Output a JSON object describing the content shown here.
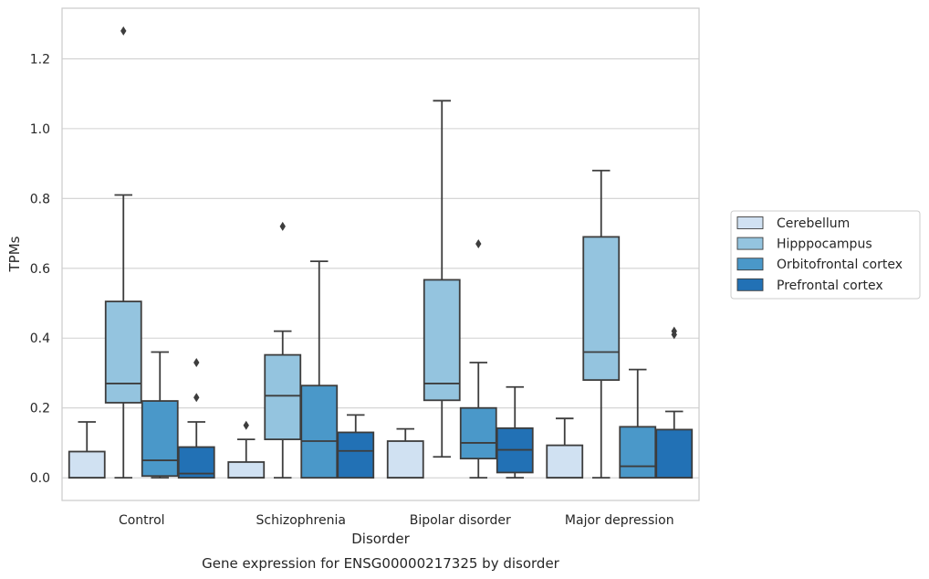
{
  "chart_data": {
    "type": "box",
    "title": "",
    "caption": "Gene expression for ENSG00000217325 by disorder",
    "xlabel": "Disorder",
    "ylabel": "TPMs",
    "ylim": [
      -0.065,
      1.345
    ],
    "yticks": [
      0.0,
      0.2,
      0.4,
      0.6,
      0.8,
      1.0,
      1.2
    ],
    "ytick_labels": [
      "0.0",
      "0.2",
      "0.4",
      "0.6",
      "0.8",
      "1.0",
      "1.2"
    ],
    "grid": "horizontal",
    "legend_position": "right",
    "categories": [
      "Control",
      "Schizophrenia",
      "Bipolar disorder",
      "Major depression"
    ],
    "series": [
      {
        "name": "Cerebellum",
        "color": "#d0e1f2",
        "boxes": [
          {
            "whislo": 0.0,
            "q1": 0.0,
            "med": 0.0,
            "q3": 0.075,
            "whishi": 0.16,
            "fliers": []
          },
          {
            "whislo": 0.0,
            "q1": 0.0,
            "med": 0.0,
            "q3": 0.045,
            "whishi": 0.11,
            "fliers": [
              0.15
            ]
          },
          {
            "whislo": 0.0,
            "q1": 0.0,
            "med": 0.0,
            "q3": 0.105,
            "whishi": 0.14,
            "fliers": []
          },
          {
            "whislo": 0.0,
            "q1": 0.0,
            "med": 0.0,
            "q3": 0.093,
            "whishi": 0.17,
            "fliers": []
          }
        ]
      },
      {
        "name": "Hipppocampus",
        "color": "#94c4df",
        "boxes": [
          {
            "whislo": 0.0,
            "q1": 0.215,
            "med": 0.27,
            "q3": 0.505,
            "whishi": 0.81,
            "fliers": [
              1.28
            ]
          },
          {
            "whislo": 0.0,
            "q1": 0.11,
            "med": 0.235,
            "q3": 0.352,
            "whishi": 0.42,
            "fliers": [
              0.72
            ]
          },
          {
            "whislo": 0.06,
            "q1": 0.222,
            "med": 0.27,
            "q3": 0.567,
            "whishi": 1.08,
            "fliers": []
          },
          {
            "whislo": 0.0,
            "q1": 0.28,
            "med": 0.36,
            "q3": 0.69,
            "whishi": 0.88,
            "fliers": []
          }
        ]
      },
      {
        "name": "Orbitofrontal cortex",
        "color": "#4a98c9",
        "boxes": [
          {
            "whislo": 0.0,
            "q1": 0.005,
            "med": 0.05,
            "q3": 0.22,
            "whishi": 0.36,
            "fliers": []
          },
          {
            "whislo": 0.0,
            "q1": 0.0,
            "med": 0.105,
            "q3": 0.264,
            "whishi": 0.62,
            "fliers": []
          },
          {
            "whislo": 0.0,
            "q1": 0.055,
            "med": 0.1,
            "q3": 0.2,
            "whishi": 0.33,
            "fliers": [
              0.67
            ]
          },
          {
            "whislo": 0.0,
            "q1": 0.0,
            "med": 0.033,
            "q3": 0.146,
            "whishi": 0.31,
            "fliers": []
          }
        ]
      },
      {
        "name": "Prefrontal cortex",
        "color": "#2271b5",
        "boxes": [
          {
            "whislo": 0.0,
            "q1": 0.0,
            "med": 0.012,
            "q3": 0.088,
            "whishi": 0.16,
            "fliers": [
              0.23,
              0.33
            ]
          },
          {
            "whislo": 0.0,
            "q1": 0.0,
            "med": 0.077,
            "q3": 0.13,
            "whishi": 0.18,
            "fliers": []
          },
          {
            "whislo": 0.0,
            "q1": 0.015,
            "med": 0.08,
            "q3": 0.142,
            "whishi": 0.26,
            "fliers": []
          },
          {
            "whislo": 0.0,
            "q1": 0.0,
            "med": 0.0,
            "q3": 0.138,
            "whishi": 0.19,
            "fliers": [
              0.41,
              0.42
            ]
          }
        ]
      }
    ]
  }
}
